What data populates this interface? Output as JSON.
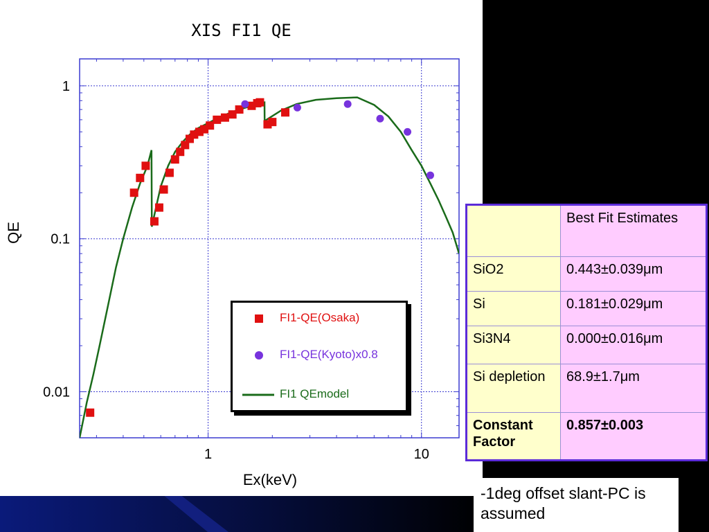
{
  "chart_data": {
    "type": "scatter",
    "title": "XIS FI1 QE",
    "xlabel": "Ex(keV)",
    "ylabel": "QE",
    "x_scale": "log",
    "y_scale": "log",
    "xlim": [
      0.25,
      15
    ],
    "ylim": [
      0.005,
      1.5
    ],
    "grid": "major dotted",
    "legend_position": "lower-center",
    "x_ticks": [
      {
        "value": 1,
        "label": "1"
      },
      {
        "value": 10,
        "label": "10"
      }
    ],
    "y_ticks": [
      {
        "value": 1,
        "label": "1"
      },
      {
        "value": 0.1,
        "label": "0.1"
      },
      {
        "value": 0.01,
        "label": "0.01"
      }
    ],
    "series": [
      {
        "name": "FI1-QE(Osaka)",
        "marker": "square",
        "color": "#e01010",
        "x": [
          0.28,
          0.45,
          0.48,
          0.51,
          0.56,
          0.59,
          0.62,
          0.66,
          0.7,
          0.74,
          0.78,
          0.82,
          0.86,
          0.91,
          0.96,
          1.02,
          1.1,
          1.2,
          1.3,
          1.4,
          1.6,
          1.7,
          1.75,
          1.9,
          2.0,
          2.3
        ],
        "y": [
          0.0073,
          0.2,
          0.25,
          0.3,
          0.13,
          0.16,
          0.21,
          0.27,
          0.33,
          0.37,
          0.41,
          0.45,
          0.48,
          0.5,
          0.52,
          0.55,
          0.6,
          0.62,
          0.65,
          0.7,
          0.74,
          0.77,
          0.78,
          0.56,
          0.58,
          0.67
        ]
      },
      {
        "name": "FI1-QE(Kyoto)x0.8",
        "marker": "circle",
        "color": "#7733dd",
        "x": [
          1.49,
          2.62,
          4.51,
          6.4,
          8.6,
          11.0
        ],
        "y": [
          0.76,
          0.72,
          0.76,
          0.61,
          0.5,
          0.26
        ]
      },
      {
        "name": "FI1 QEmodel",
        "marker": "line",
        "color": "#1a6b1a",
        "x": [
          0.25,
          0.27,
          0.29,
          0.31,
          0.34,
          0.37,
          0.4,
          0.44,
          0.48,
          0.52,
          0.543,
          0.545,
          0.57,
          0.6,
          0.65,
          0.7,
          0.76,
          0.82,
          0.9,
          1.0,
          1.1,
          1.25,
          1.4,
          1.6,
          1.75,
          1.838,
          1.84,
          1.95,
          2.2,
          2.6,
          3.2,
          4.0,
          5.0,
          6.0,
          7.0,
          8.0,
          9.0,
          10.0,
          11.0,
          12.0,
          13.0,
          14.0,
          15.0
        ],
        "y": [
          0.005,
          0.0085,
          0.013,
          0.02,
          0.037,
          0.065,
          0.1,
          0.16,
          0.23,
          0.3,
          0.38,
          0.12,
          0.16,
          0.22,
          0.3,
          0.37,
          0.43,
          0.48,
          0.53,
          0.57,
          0.61,
          0.66,
          0.7,
          0.74,
          0.77,
          0.78,
          0.59,
          0.62,
          0.69,
          0.76,
          0.81,
          0.83,
          0.84,
          0.75,
          0.63,
          0.5,
          0.38,
          0.3,
          0.23,
          0.18,
          0.14,
          0.11,
          0.08
        ]
      }
    ]
  },
  "table": {
    "header": [
      "",
      "Best Fit Estimates"
    ],
    "rows": [
      {
        "param": "SiO2",
        "value": "0.443±0.039μm",
        "bold": false
      },
      {
        "param": "Si",
        "value": "0.181±0.029μm",
        "bold": false
      },
      {
        "param": "Si3N4",
        "value": "0.000±0.016μm",
        "bold": false
      },
      {
        "param": "Si depletion",
        "value": "68.9±1.7μm",
        "bold": false
      },
      {
        "param": "Constant Factor",
        "value": "0.857±0.003",
        "bold": true
      }
    ]
  },
  "note": "-1deg offset slant-PC is assumed",
  "colors": {
    "table_border": "#5b2bd8",
    "table_param_bg": "#ffffcc",
    "table_value_bg": "#ffccff",
    "plot_frame": "#3a3ad0",
    "grid": "#3a3ad0"
  }
}
